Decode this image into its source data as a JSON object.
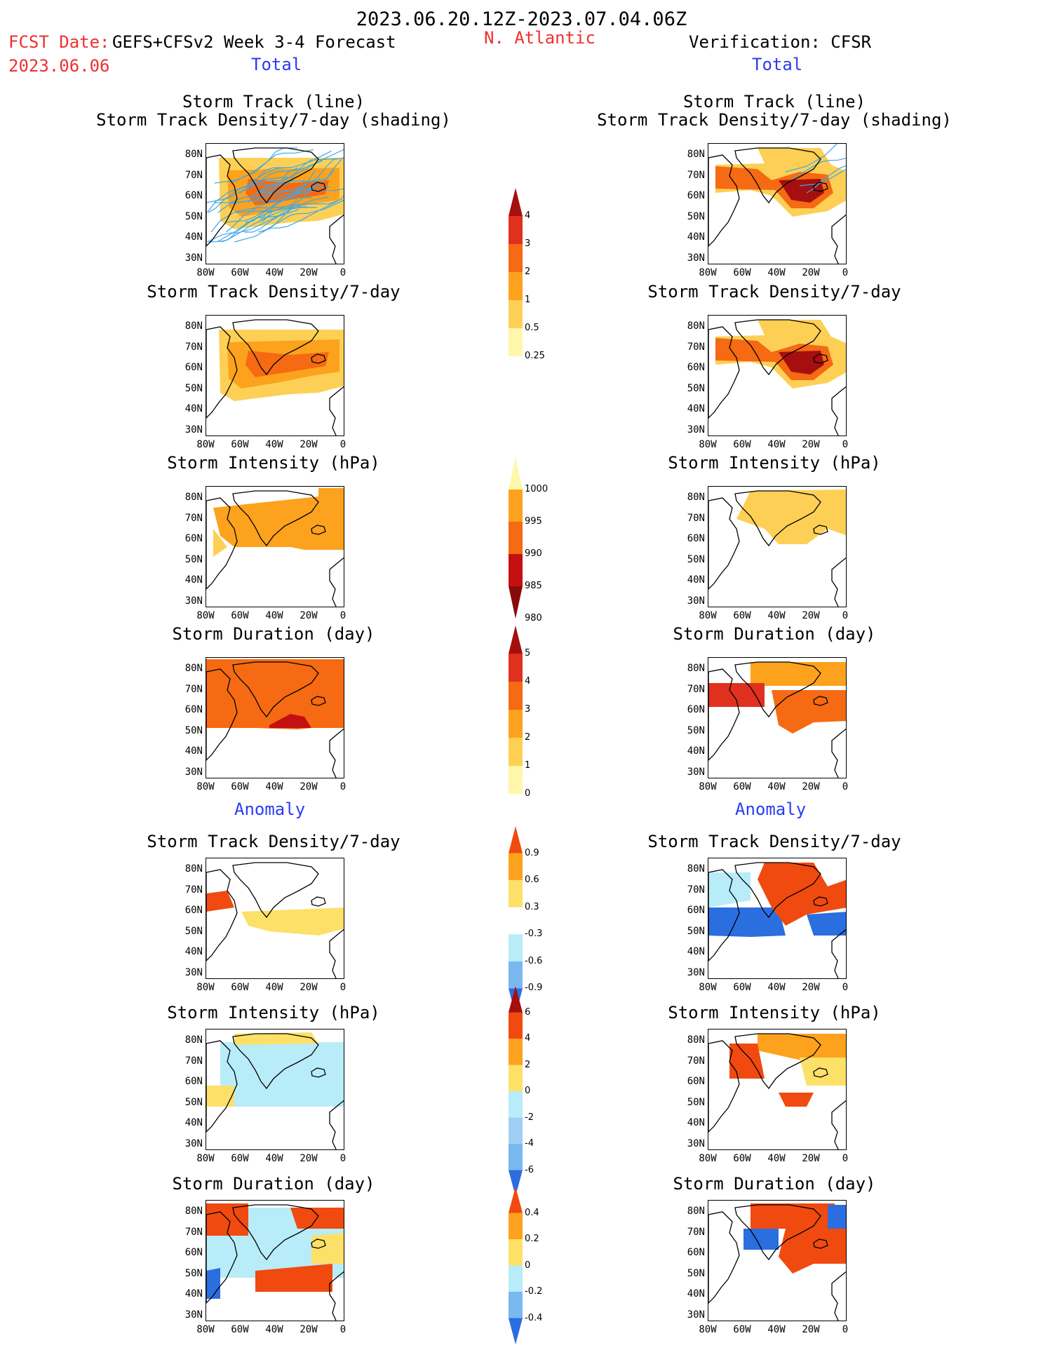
{
  "header": {
    "period": "2023.06.20.12Z-2023.07.04.06Z",
    "fcst_date_label": "FCST Date:",
    "fcst_date": "2023.06.06",
    "model": "GEFS+CFSv2 Week 3-4 Forecast",
    "region": "N. Atlantic",
    "verification": "Verification: CFSR",
    "left_section": "Total",
    "right_section": "Total"
  },
  "section_titles": {
    "anomaly_left": "Anomaly",
    "anomaly_right": "Anomaly"
  },
  "panel_titles": {
    "track_line": "Storm Track (line)",
    "track_shading": "Storm Track Density/7-day (shading)",
    "density": "Storm Track Density/7-day",
    "intensity": "Storm Intensity (hPa)",
    "duration": "Storm Duration (day)"
  },
  "axes": {
    "lat_labels": [
      "80N",
      "70N",
      "60N",
      "50N",
      "40N",
      "30N"
    ],
    "lon_labels": [
      "80W",
      "60W",
      "40W",
      "20W",
      "0"
    ]
  },
  "colorbars": {
    "density_total": {
      "labels": [
        "4",
        "3",
        "2",
        "1",
        "0.5",
        "0.25"
      ],
      "colors": [
        "#a50f0f",
        "#e0301e",
        "#f56a12",
        "#fda21c",
        "#fdd055",
        "#fff7aa"
      ]
    },
    "intensity_total": {
      "labels": [
        "1000",
        "995",
        "990",
        "985",
        "980"
      ],
      "colors": [
        "#fff7aa",
        "#fda21c",
        "#f56a12",
        "#c41010",
        "#8a0a0a"
      ]
    },
    "duration_total": {
      "labels": [
        "5",
        "4",
        "3",
        "2",
        "1",
        "0"
      ],
      "colors": [
        "#a50f0f",
        "#e0301e",
        "#f56a12",
        "#fda21c",
        "#fdd055",
        "#fff7aa"
      ]
    },
    "density_anom": {
      "labels": [
        "0.9",
        "0.6",
        "0.3",
        "-0.3",
        "-0.6",
        "-0.9"
      ],
      "colors": [
        "#f04a10",
        "#fda21c",
        "#fde068",
        "#ffffff",
        "#b8ecf8",
        "#7ab8f0",
        "#2a6ee0"
      ]
    },
    "intensity_anom": {
      "labels": [
        "6",
        "4",
        "2",
        "0",
        "-2",
        "-4",
        "-6"
      ],
      "colors": [
        "#a50f0f",
        "#f04a10",
        "#fda21c",
        "#fde068",
        "#b8ecf8",
        "#9fd0f4",
        "#7ab8f0",
        "#2a6ee0"
      ]
    },
    "duration_anom": {
      "labels": [
        "0.4",
        "0.2",
        "0",
        "-0.2",
        "-0.4"
      ],
      "colors": [
        "#f04a10",
        "#fda21c",
        "#fde068",
        "#b8ecf8",
        "#7ab8f0",
        "#2a6ee0"
      ]
    }
  },
  "colors": {
    "track_line": "#3ea8e8",
    "land_outline": "#000000"
  }
}
